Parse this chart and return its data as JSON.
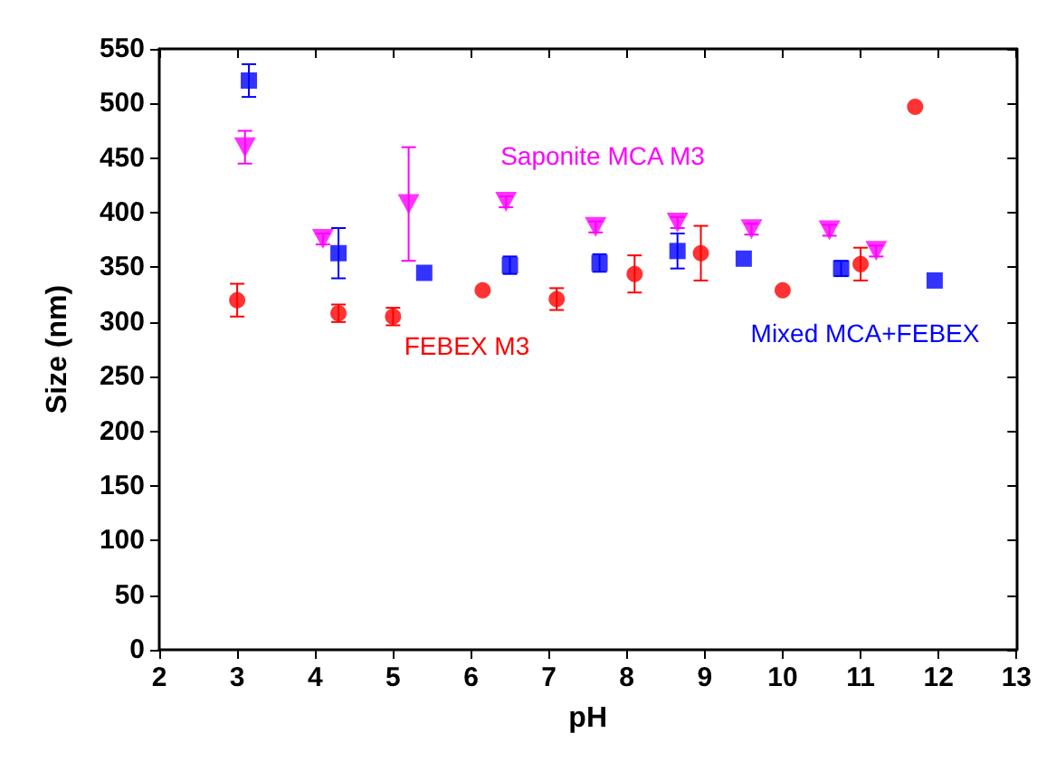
{
  "chart_data": {
    "type": "scatter",
    "xlabel": "pH",
    "ylabel": "Size (nm)",
    "xlim": [
      2,
      13
    ],
    "xticks": [
      2,
      3,
      4,
      5,
      6,
      7,
      8,
      9,
      10,
      11,
      12,
      13
    ],
    "ylim": [
      0,
      550
    ],
    "yticks": [
      0,
      50,
      100,
      150,
      200,
      250,
      300,
      350,
      400,
      450,
      500,
      550
    ],
    "grid": false,
    "legend": false,
    "series": [
      {
        "name": "FEBEX M3",
        "color": "#ff0000",
        "marker": "circle",
        "x": [
          3.0,
          4.3,
          5.0,
          6.15,
          7.1,
          8.1,
          8.95,
          10.0,
          11.0,
          11.7
        ],
        "values": [
          320,
          308,
          305,
          329,
          321,
          344,
          363,
          329,
          353,
          497
        ],
        "errors": [
          15,
          8,
          8,
          null,
          10,
          17,
          25,
          null,
          15,
          null
        ]
      },
      {
        "name": "Mixed MCA+FEBEX",
        "color": "#0000ff",
        "marker": "square",
        "x": [
          3.15,
          4.3,
          5.4,
          6.5,
          7.65,
          8.65,
          9.5,
          10.75,
          11.95
        ],
        "values": [
          521,
          363,
          345,
          352,
          354,
          365,
          358,
          349,
          338
        ],
        "errors": [
          15,
          23,
          null,
          8,
          8,
          16,
          null,
          7,
          null
        ]
      },
      {
        "name": "Saponite MCA M3",
        "color": "#ff00ff",
        "marker": "triangle",
        "x": [
          3.1,
          4.1,
          5.2,
          6.45,
          7.6,
          8.65,
          9.6,
          10.6,
          11.2
        ],
        "values": [
          460,
          376,
          408,
          410,
          387,
          391,
          385,
          384,
          365
        ],
        "errors": [
          15,
          5,
          52,
          5,
          5,
          5,
          5,
          5,
          5
        ]
      }
    ]
  }
}
